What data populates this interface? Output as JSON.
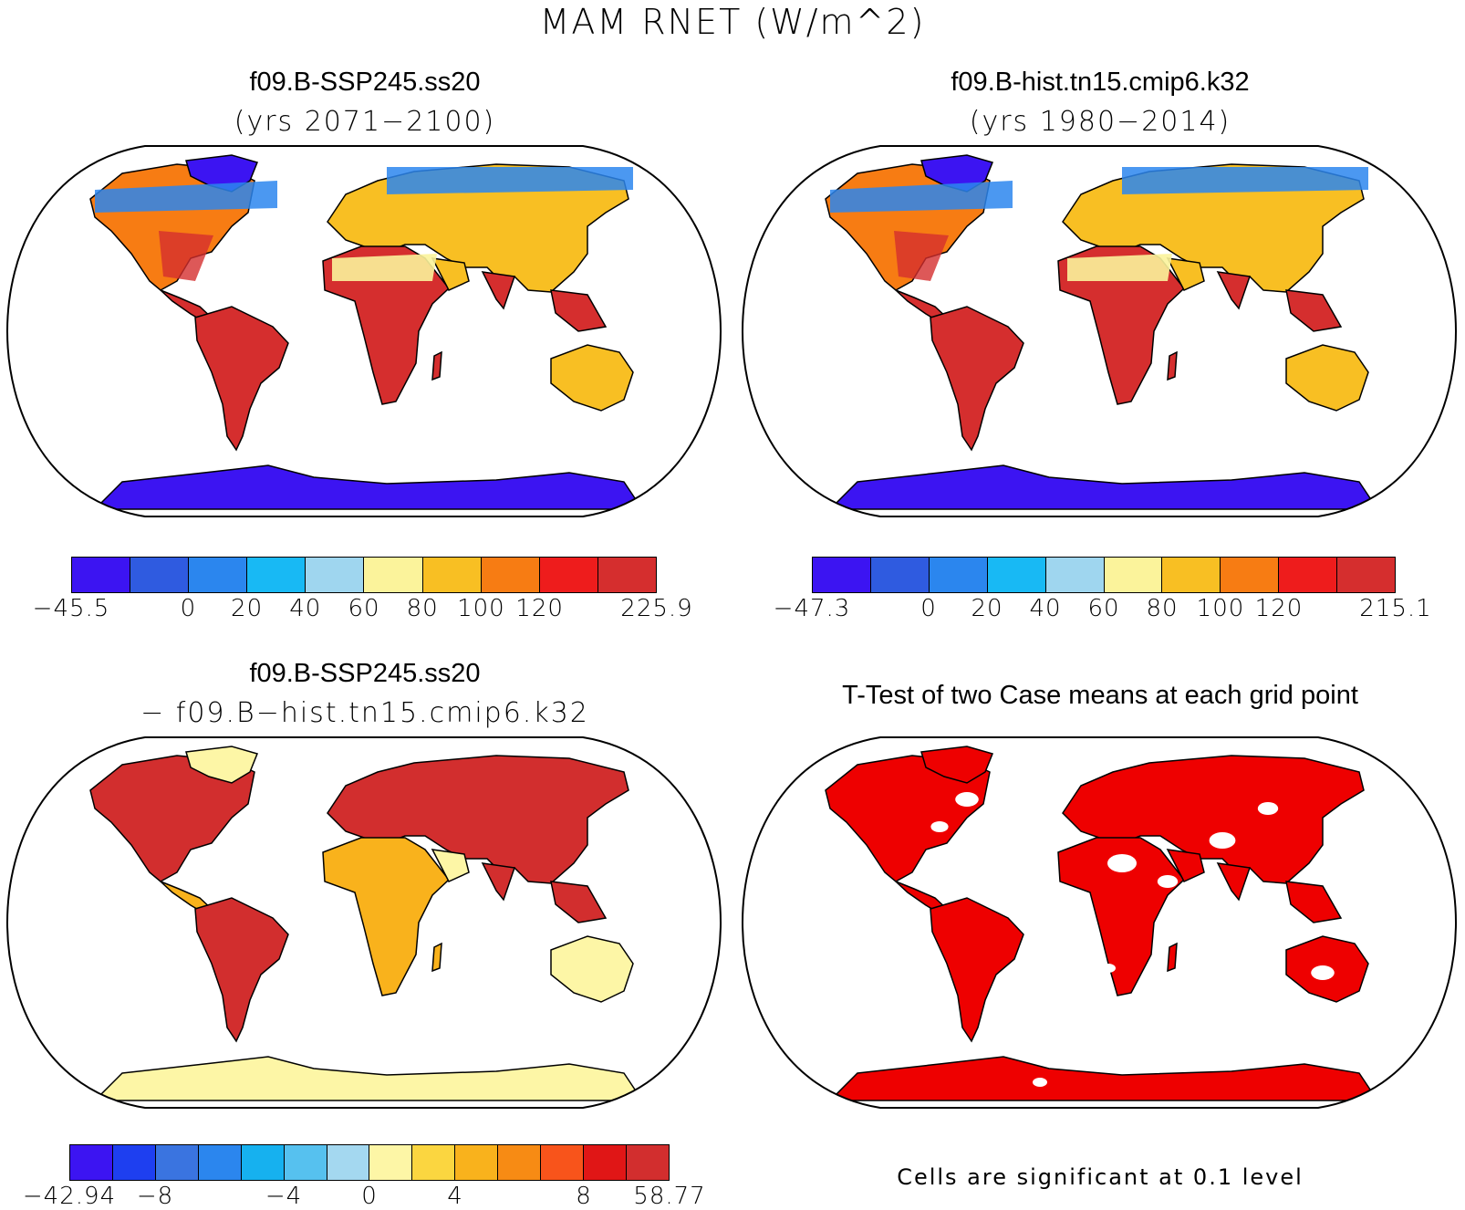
{
  "title": "MAM RNET (W/m^2)",
  "panels": [
    {
      "id": "case1",
      "title": "f09.B-SSP245.ss20",
      "subtitle": "(yrs 2071−2100)",
      "colorbar": {
        "colors": [
          "#3c14f2",
          "#2f5be0",
          "#2b86ee",
          "#18b9f4",
          "#9fd6ef",
          "#fbf39b",
          "#f8bf23",
          "#f77c13",
          "#ee1c1c",
          "#d52e2e"
        ],
        "labels": [
          "−45.5",
          "0",
          "20",
          "40",
          "60",
          "80",
          "100",
          "120",
          "225.9"
        ]
      }
    },
    {
      "id": "case2",
      "title": "f09.B-hist.tn15.cmip6.k32",
      "subtitle": "(yrs 1980−2014)",
      "colorbar": {
        "colors": [
          "#3c14f2",
          "#2f5be0",
          "#2b86ee",
          "#18b9f4",
          "#9fd6ef",
          "#fbf39b",
          "#f8bf23",
          "#f77c13",
          "#ee1c1c",
          "#d52e2e"
        ],
        "labels": [
          "−47.3",
          "0",
          "20",
          "40",
          "60",
          "80",
          "100",
          "120",
          "215.1"
        ]
      }
    },
    {
      "id": "diff",
      "title": "f09.B-SSP245.ss20",
      "subtitle": "− f09.B−hist.tn15.cmip6.k32",
      "colorbar": {
        "colors": [
          "#3c14f2",
          "#1e3ff0",
          "#3a74e0",
          "#2b86ee",
          "#16b1ef",
          "#56c1ef",
          "#a4d8f0",
          "#fdf6a6",
          "#fbd640",
          "#f9b21c",
          "#f78b14",
          "#f8541b",
          "#e01616",
          "#d22e2e"
        ],
        "labels": [
          "−42.94",
          "−8",
          "−4",
          "0",
          "4",
          "8",
          "58.77"
        ]
      }
    },
    {
      "id": "ttest",
      "title": "T-Test of two Case means at each grid point",
      "note": "Cells are significant at 0.1 level"
    }
  ],
  "map_colors": {
    "ocean": "#ffffff",
    "coast": "#000000",
    "case_land": "#f77c13",
    "case_tropics": "#d52e2e",
    "case_desert": "#fbf39b",
    "case_arid": "#f8bf23",
    "case_ice": "#3c14f2",
    "case_cold": "#2b86ee",
    "diff_land": "#f9b21c",
    "diff_hot": "#d22e2e",
    "diff_pale": "#fdf6a6",
    "sig_fill": "#ee0000"
  }
}
